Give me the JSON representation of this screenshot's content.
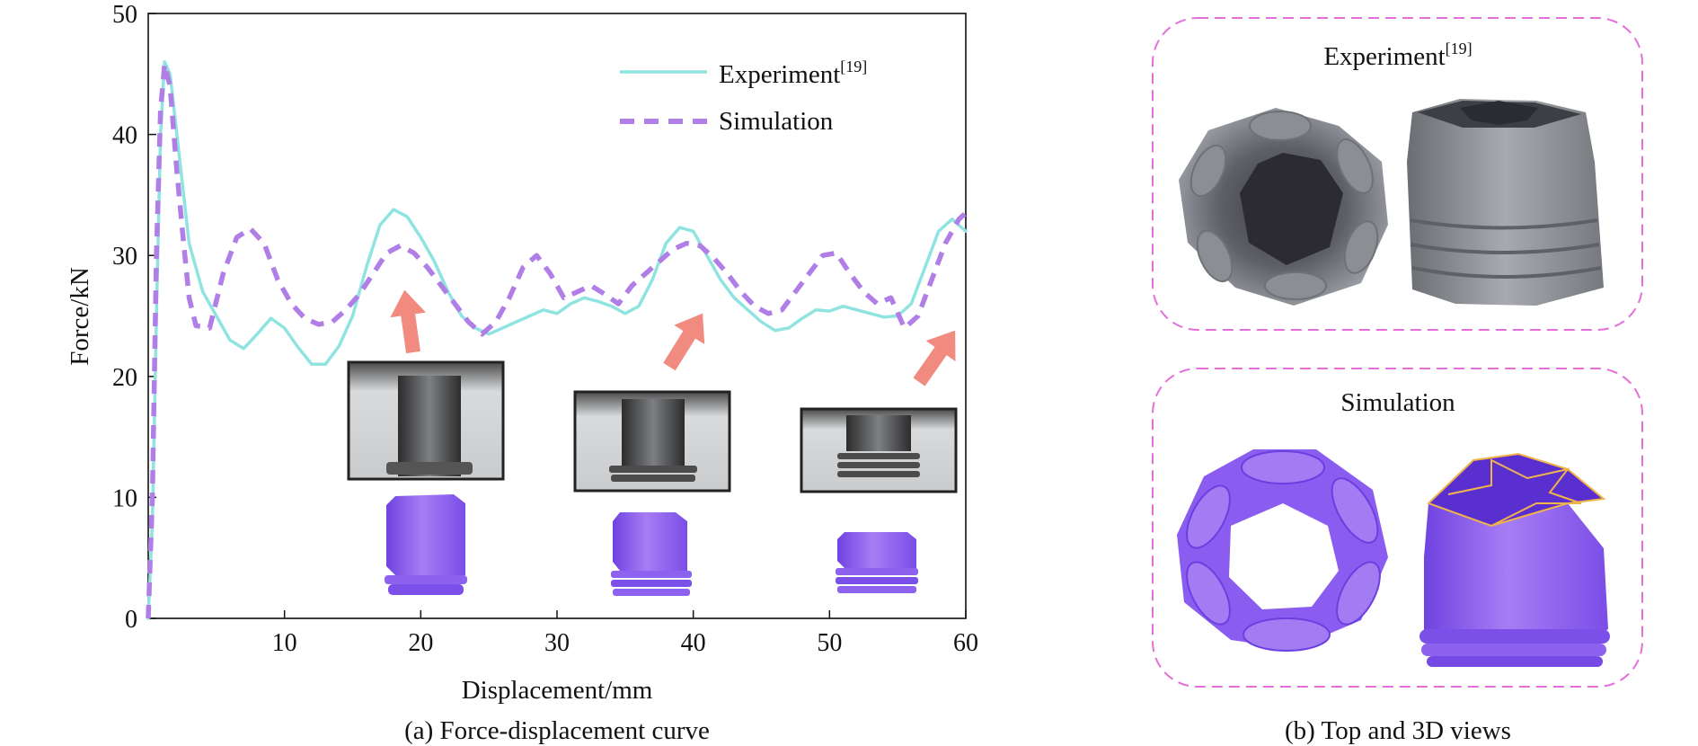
{
  "chart_data": {
    "type": "line",
    "title": "",
    "xlabel": "Displacement/mm",
    "ylabel": "Force/kN",
    "xlim": [
      0,
      60
    ],
    "ylim": [
      0,
      50
    ],
    "xticks": [
      10,
      20,
      30,
      40,
      50,
      60
    ],
    "yticks": [
      0,
      10,
      20,
      30,
      40,
      50
    ],
    "grid": false,
    "legend_position": "top-right",
    "series": [
      {
        "name": "Experiment",
        "superscript": "[19]",
        "color": "#8fe3e0",
        "dash": "solid",
        "points": [
          [
            0,
            0
          ],
          [
            0.3,
            8
          ],
          [
            0.6,
            25
          ],
          [
            0.9,
            40
          ],
          [
            1.2,
            46
          ],
          [
            1.6,
            45
          ],
          [
            2.2,
            39
          ],
          [
            3,
            31
          ],
          [
            4,
            27
          ],
          [
            5,
            25
          ],
          [
            6,
            23
          ],
          [
            7,
            22.3
          ],
          [
            8,
            23.5
          ],
          [
            9,
            24.8
          ],
          [
            10,
            24
          ],
          [
            11,
            22.4
          ],
          [
            12,
            21
          ],
          [
            13,
            21
          ],
          [
            14,
            22.5
          ],
          [
            15,
            25
          ],
          [
            16,
            29
          ],
          [
            17,
            32.5
          ],
          [
            18,
            33.8
          ],
          [
            19,
            33.2
          ],
          [
            20,
            31.5
          ],
          [
            21,
            29.5
          ],
          [
            22,
            27
          ],
          [
            23,
            25
          ],
          [
            24,
            24
          ],
          [
            25,
            23.5
          ],
          [
            26,
            24
          ],
          [
            27,
            24.5
          ],
          [
            28,
            25
          ],
          [
            29,
            25.5
          ],
          [
            30,
            25.2
          ],
          [
            31,
            26
          ],
          [
            32,
            26.5
          ],
          [
            33,
            26.2
          ],
          [
            34,
            25.8
          ],
          [
            35,
            25.2
          ],
          [
            36,
            25.8
          ],
          [
            37,
            28
          ],
          [
            38,
            31
          ],
          [
            39,
            32.3
          ],
          [
            40,
            32
          ],
          [
            41,
            30
          ],
          [
            42,
            28
          ],
          [
            43,
            26.5
          ],
          [
            44,
            25.5
          ],
          [
            45,
            24.5
          ],
          [
            46,
            23.8
          ],
          [
            47,
            24
          ],
          [
            48,
            24.8
          ],
          [
            49,
            25.5
          ],
          [
            50,
            25.4
          ],
          [
            51,
            25.8
          ],
          [
            52,
            25.5
          ],
          [
            53,
            25.2
          ],
          [
            54,
            24.9
          ],
          [
            55,
            25
          ],
          [
            56,
            26
          ],
          [
            57,
            29
          ],
          [
            58,
            32
          ],
          [
            59,
            33
          ],
          [
            60,
            32
          ]
        ]
      },
      {
        "name": "Simulation",
        "color": "#b07ee6",
        "dash": "dashed",
        "points": [
          [
            0,
            0
          ],
          [
            0.3,
            10
          ],
          [
            0.6,
            30
          ],
          [
            0.9,
            42
          ],
          [
            1.2,
            45.8
          ],
          [
            1.6,
            44
          ],
          [
            2.1,
            37
          ],
          [
            2.6,
            31
          ],
          [
            3,
            26.5
          ],
          [
            3.5,
            24.2
          ],
          [
            4.5,
            24
          ],
          [
            5.5,
            28.5
          ],
          [
            6.5,
            31.5
          ],
          [
            7.5,
            32.2
          ],
          [
            8.5,
            31
          ],
          [
            9.5,
            28
          ],
          [
            10.5,
            26
          ],
          [
            11.5,
            24.8
          ],
          [
            12.5,
            24.3
          ],
          [
            13.5,
            24.5
          ],
          [
            14.5,
            25.5
          ],
          [
            15.5,
            26.8
          ],
          [
            16.5,
            28.5
          ],
          [
            17.5,
            30.2
          ],
          [
            18.5,
            30.8
          ],
          [
            19.5,
            30.2
          ],
          [
            20.5,
            29
          ],
          [
            21.5,
            27.5
          ],
          [
            22.5,
            26
          ],
          [
            23.5,
            24.5
          ],
          [
            24.5,
            23.5
          ],
          [
            25.5,
            24.5
          ],
          [
            26.5,
            26.5
          ],
          [
            27.5,
            29
          ],
          [
            28.5,
            30
          ],
          [
            29.5,
            28.5
          ],
          [
            30.5,
            26.5
          ],
          [
            31.5,
            27
          ],
          [
            32.5,
            27.5
          ],
          [
            33.5,
            26.8
          ],
          [
            34.5,
            26
          ],
          [
            35.5,
            27.5
          ],
          [
            36.5,
            28.5
          ],
          [
            37.5,
            29.5
          ],
          [
            38.5,
            30.5
          ],
          [
            39.5,
            31
          ],
          [
            40.5,
            30.8
          ],
          [
            41.5,
            29.8
          ],
          [
            42.5,
            28.5
          ],
          [
            43.5,
            27
          ],
          [
            44.5,
            25.8
          ],
          [
            45.5,
            25.2
          ],
          [
            46.5,
            25.5
          ],
          [
            47.5,
            27
          ],
          [
            48.5,
            28.5
          ],
          [
            49.5,
            30
          ],
          [
            50.5,
            30.2
          ],
          [
            51.5,
            28.5
          ],
          [
            52.5,
            27
          ],
          [
            53.5,
            26
          ],
          [
            54.5,
            26.5
          ],
          [
            55.5,
            24
          ],
          [
            56.5,
            25
          ],
          [
            57.5,
            28
          ],
          [
            58.5,
            31
          ],
          [
            59.5,
            33
          ],
          [
            60,
            33.5
          ]
        ]
      }
    ],
    "caption": "(a) Force-displacement curve"
  },
  "panel_b": {
    "experiment_label": "Experiment",
    "experiment_superscript": "[19]",
    "simulation_label": "Simulation",
    "caption": "(b) Top and 3D views"
  },
  "colors": {
    "experiment": "#8fe3e0",
    "simulation": "#b07ee6",
    "arrow": "#f28b7f",
    "frame": "#e46fd8",
    "model": "#8a5cf0",
    "photo": "#8d9196"
  }
}
